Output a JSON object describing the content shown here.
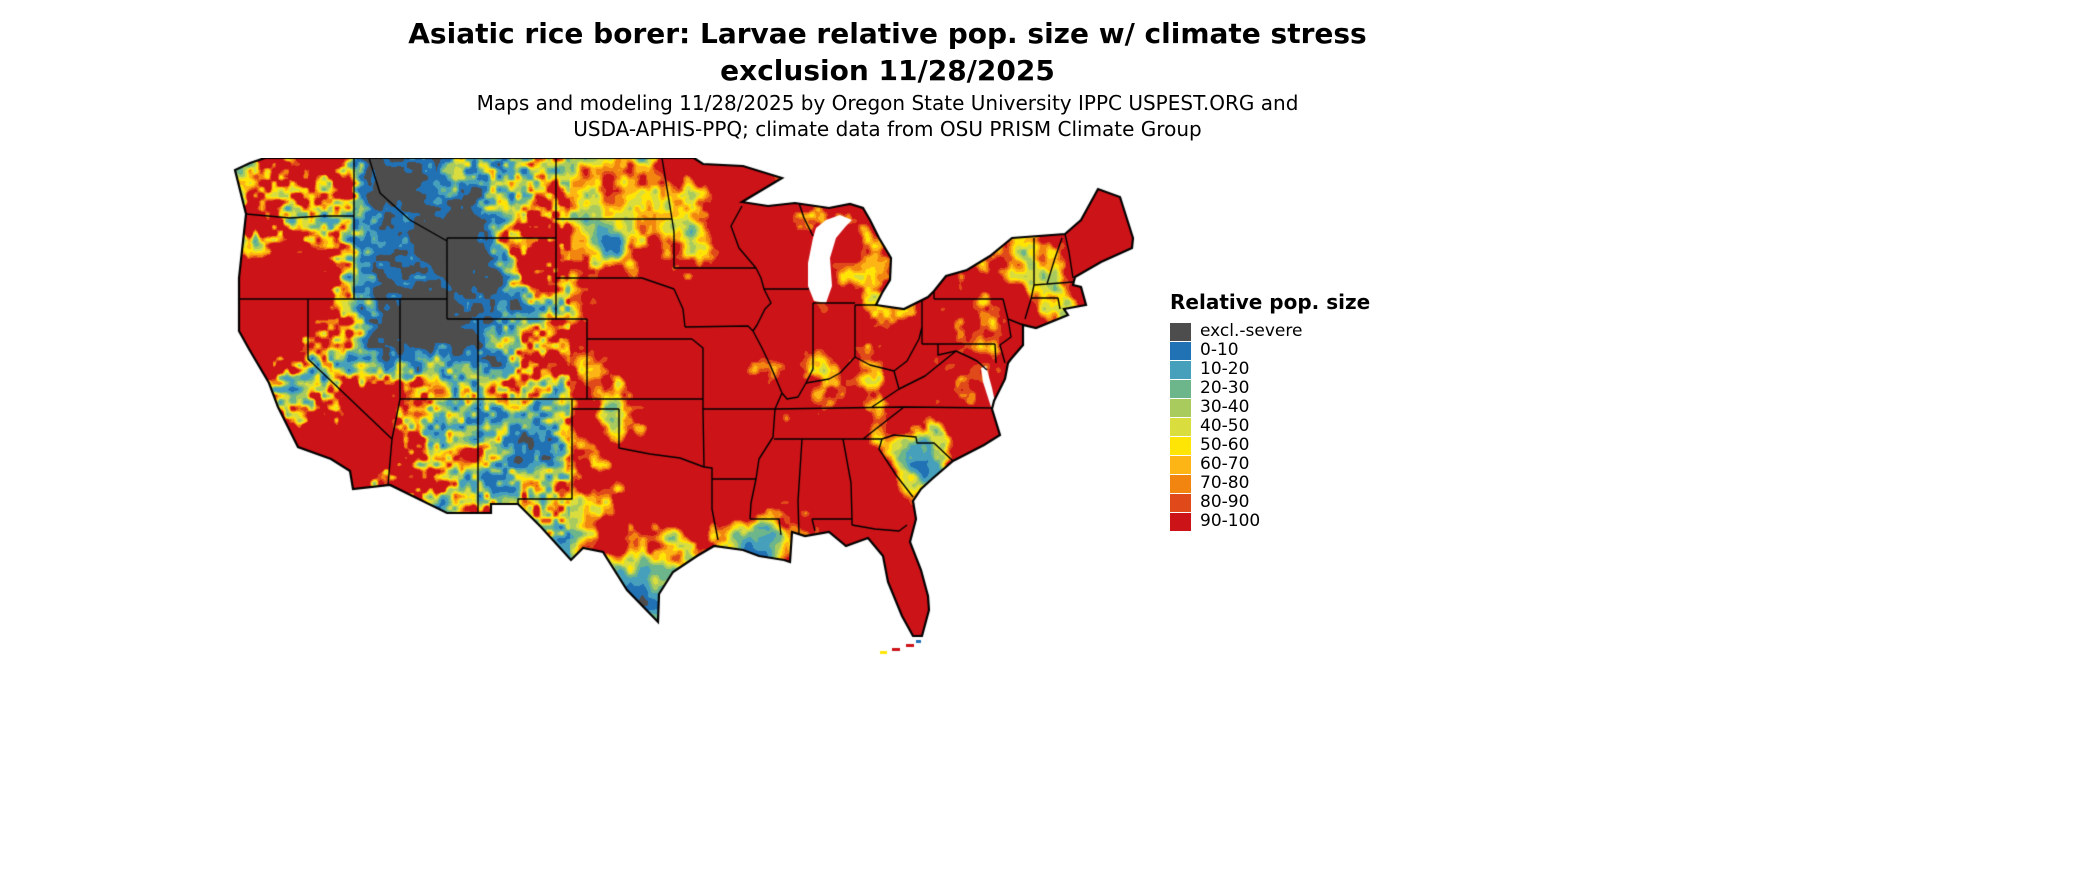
{
  "header": {
    "title_line1": "Asiatic rice borer: Larvae relative pop. size w/ climate stress",
    "title_line2": "exclusion 11/28/2025",
    "subtitle_line1": "Maps and modeling 11/28/2025 by Oregon State University IPPC USPEST.ORG and",
    "subtitle_line2": "USDA-APHIS-PPQ; climate data from OSU PRISM Climate Group"
  },
  "map": {
    "region": "Contiguous United States",
    "type": "raster-choropleth",
    "description_visible": "Relative population size raster over the contiguous United States with black state borders",
    "legend": {
      "title": "Relative pop. size",
      "items": [
        {
          "label": "excl.-severe",
          "color": "#4d4d4d"
        },
        {
          "label": "0-10",
          "color": "#2171b5"
        },
        {
          "label": "10-20",
          "color": "#46a0bc"
        },
        {
          "label": "20-30",
          "color": "#6db58a"
        },
        {
          "label": "30-40",
          "color": "#a9cb5e"
        },
        {
          "label": "40-50",
          "color": "#d9dd3e"
        },
        {
          "label": "50-60",
          "color": "#ffe506"
        },
        {
          "label": "60-70",
          "color": "#fdb515"
        },
        {
          "label": "70-80",
          "color": "#f2850f"
        },
        {
          "label": "80-90",
          "color": "#e04a1a"
        },
        {
          "label": "90-100",
          "color": "#cc1318"
        }
      ]
    }
  }
}
